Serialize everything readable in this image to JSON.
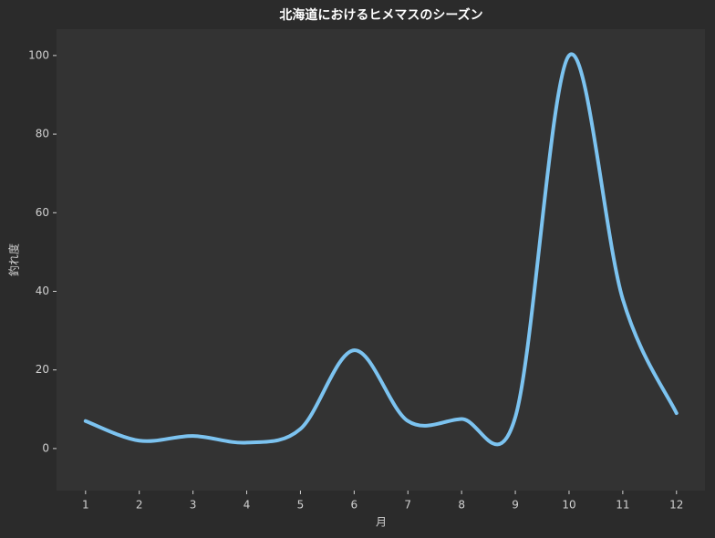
{
  "chart_data": {
    "type": "line",
    "title": "北海道におけるヒメマスのシーズン",
    "x_label": "月",
    "y_label": "釣れ度",
    "x": [
      1,
      2,
      3,
      4,
      5,
      6,
      7,
      8,
      9,
      10,
      11,
      12
    ],
    "series": [
      {
        "name": "釣れ度",
        "color": "#7cc3f0",
        "values": [
          7,
          2,
          3.2,
          1.5,
          5,
          25,
          7,
          7.5,
          8,
          100,
          38,
          9
        ]
      }
    ],
    "xlim": [
      0.46,
      12.53
    ],
    "ylim": [
      -10.7,
      106.7
    ],
    "xticks": [
      1,
      2,
      3,
      4,
      5,
      6,
      7,
      8,
      9,
      10,
      11,
      12
    ],
    "yticks": [
      0,
      20,
      40,
      60,
      80,
      100
    ],
    "smooth": true
  }
}
